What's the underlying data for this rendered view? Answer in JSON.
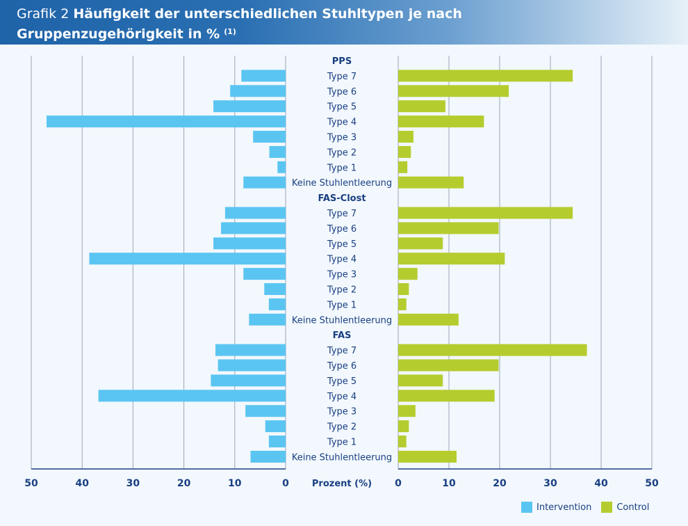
{
  "title": {
    "prefix": "Grafik 2",
    "bold": "Häufigkeit der unterschiedlichen Stuhltypen je nach Gruppenzugehörigkeit in %",
    "footnote": "(1)"
  },
  "colors": {
    "intervention": "#5bc5f2",
    "control": "#b5cc2e",
    "text": "#1a3f82",
    "grid": "#9aa5b5"
  },
  "legend": {
    "intervention": "Intervention",
    "control": "Control"
  },
  "chart_data": {
    "type": "bar",
    "orientation": "horizontal-butterfly",
    "xlabel": "Prozent (%)",
    "xlim": [
      0,
      50
    ],
    "ticks": [
      0,
      10,
      20,
      30,
      40,
      50
    ],
    "grid": true,
    "legend_position": "bottom-right",
    "categories": [
      "Type 7",
      "Type 6",
      "Type 5",
      "Type 4",
      "Type 3",
      "Type 2",
      "Type 1",
      "Keine Stuhlentleerung"
    ],
    "groups": [
      {
        "name": "PPS",
        "intervention": [
          8.7,
          10.9,
          14.2,
          47.0,
          6.4,
          3.2,
          1.6,
          8.3
        ],
        "control": [
          34.4,
          21.8,
          9.3,
          16.9,
          3.0,
          2.5,
          1.8,
          12.9
        ]
      },
      {
        "name": "FAS-Clost",
        "intervention": [
          11.9,
          12.7,
          14.2,
          38.6,
          8.3,
          4.2,
          3.3,
          7.2
        ],
        "control": [
          34.4,
          19.8,
          8.8,
          21.0,
          3.8,
          2.1,
          1.6,
          11.9
        ]
      },
      {
        "name": "FAS",
        "intervention": [
          13.8,
          13.3,
          14.7,
          36.8,
          7.9,
          4.0,
          3.3,
          6.9
        ],
        "control": [
          37.2,
          19.8,
          8.8,
          19.0,
          3.4,
          2.1,
          1.6,
          11.5
        ]
      }
    ]
  }
}
